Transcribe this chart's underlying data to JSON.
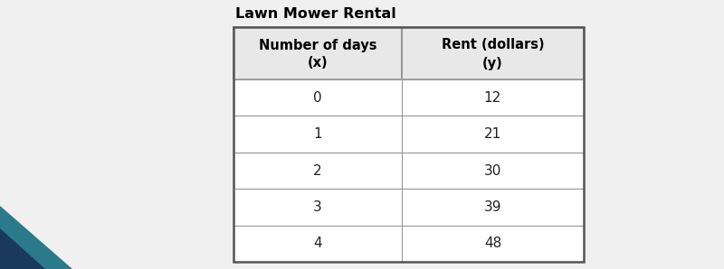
{
  "title": "Lawn Mower Rental",
  "col1_header_line1": "Number of days",
  "col1_header_line2": "(x)",
  "col2_header_line1": "Rent (dollars)",
  "col2_header_line2": "(y)",
  "x_values": [
    "0",
    "1",
    "2",
    "3",
    "4"
  ],
  "y_values": [
    "12",
    "21",
    "30",
    "39",
    "48"
  ],
  "background_color": "#f0f0f0",
  "table_bg_color": "#ffffff",
  "header_bg_color": "#e8e8e8",
  "border_color": "#999999",
  "outer_border_color": "#555555",
  "title_fontsize": 11.5,
  "header_fontsize": 10.5,
  "cell_fontsize": 11,
  "title_color": "#000000",
  "cell_text_color": "#222222",
  "teal_color": "#2a7a8c",
  "navy_color": "#1a3a5c"
}
